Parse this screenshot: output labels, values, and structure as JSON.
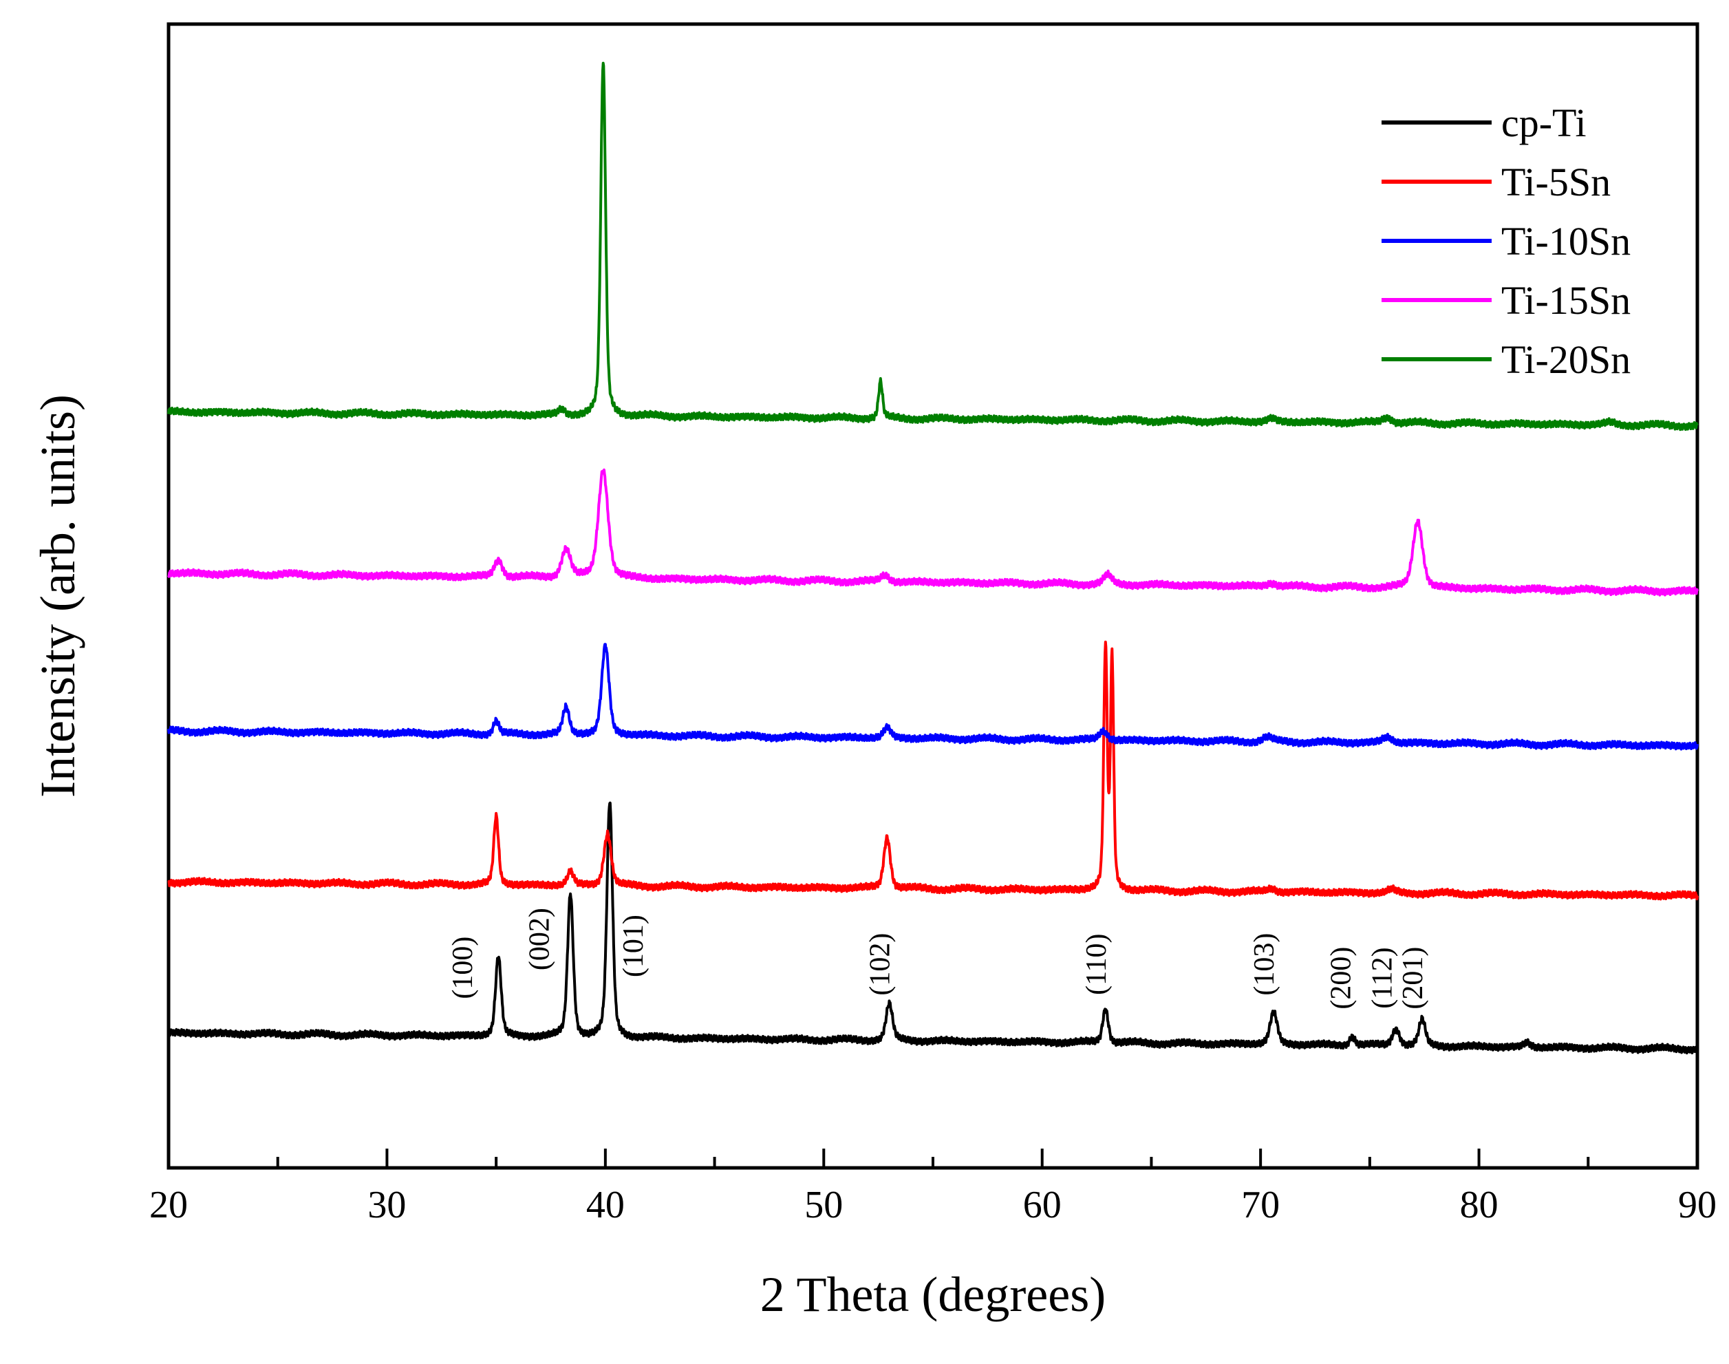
{
  "chart_data": {
    "type": "line",
    "title": "",
    "xlabel": "2 Theta (degrees)",
    "ylabel": "Intensity (arb. units)",
    "xlim": [
      20,
      90
    ],
    "ylim": [
      0,
      100
    ],
    "xticks": [
      20,
      30,
      40,
      50,
      60,
      70,
      80,
      90
    ],
    "xtick_labels": [
      "20",
      "30",
      "40",
      "50",
      "60",
      "70",
      "80",
      "90"
    ],
    "grid": false,
    "legend_position": "top-right",
    "series": [
      {
        "name": "cp-Ti",
        "color": "#000000",
        "baseline_start": 11.8,
        "baseline_end": 10.4,
        "peaks": [
          {
            "x": 35.1,
            "height": 7.0,
            "width": 0.35
          },
          {
            "x": 38.4,
            "height": 12.5,
            "width": 0.35
          },
          {
            "x": 40.2,
            "height": 20.5,
            "width": 0.35
          },
          {
            "x": 53.0,
            "height": 3.2,
            "width": 0.4
          },
          {
            "x": 62.9,
            "height": 3.0,
            "width": 0.35
          },
          {
            "x": 70.6,
            "height": 2.8,
            "width": 0.45
          },
          {
            "x": 74.2,
            "height": 0.8,
            "width": 0.35
          },
          {
            "x": 76.2,
            "height": 1.5,
            "width": 0.45
          },
          {
            "x": 77.4,
            "height": 2.3,
            "width": 0.4
          },
          {
            "x": 82.2,
            "height": 0.4,
            "width": 0.4
          }
        ]
      },
      {
        "name": "Ti-5Sn",
        "color": "#ff0000",
        "baseline_start": 25.0,
        "baseline_end": 23.8,
        "peaks": [
          {
            "x": 35.0,
            "height": 6.0,
            "width": 0.3
          },
          {
            "x": 38.4,
            "height": 1.2,
            "width": 0.4
          },
          {
            "x": 40.1,
            "height": 4.6,
            "width": 0.45
          },
          {
            "x": 52.9,
            "height": 4.5,
            "width": 0.4
          },
          {
            "x": 62.9,
            "height": 21.0,
            "width": 0.22
          },
          {
            "x": 63.2,
            "height": 20.0,
            "width": 0.2
          },
          {
            "x": 70.5,
            "height": 0.3,
            "width": 0.5
          },
          {
            "x": 76.0,
            "height": 0.3,
            "width": 0.5
          }
        ]
      },
      {
        "name": "Ti-10Sn",
        "color": "#0000ff",
        "baseline_start": 38.2,
        "baseline_end": 36.9,
        "peaks": [
          {
            "x": 35.0,
            "height": 1.2,
            "width": 0.35
          },
          {
            "x": 38.2,
            "height": 2.4,
            "width": 0.4
          },
          {
            "x": 40.0,
            "height": 7.8,
            "width": 0.45
          },
          {
            "x": 52.9,
            "height": 0.9,
            "width": 0.45
          },
          {
            "x": 62.8,
            "height": 0.8,
            "width": 0.5
          },
          {
            "x": 70.3,
            "height": 0.4,
            "width": 0.6
          },
          {
            "x": 75.8,
            "height": 0.5,
            "width": 0.6
          }
        ]
      },
      {
        "name": "Ti-15Sn",
        "color": "#ff00ff",
        "baseline_start": 52.0,
        "baseline_end": 50.4,
        "peaks": [
          {
            "x": 35.1,
            "height": 1.5,
            "width": 0.5
          },
          {
            "x": 38.2,
            "height": 2.5,
            "width": 0.55
          },
          {
            "x": 39.9,
            "height": 9.5,
            "width": 0.6
          },
          {
            "x": 52.8,
            "height": 0.6,
            "width": 0.5
          },
          {
            "x": 63.0,
            "height": 0.8,
            "width": 0.5
          },
          {
            "x": 70.5,
            "height": 0.3,
            "width": 0.6
          },
          {
            "x": 77.2,
            "height": 5.9,
            "width": 0.6
          }
        ]
      },
      {
        "name": "Ti-20Sn",
        "color": "#007f00",
        "baseline_start": 66.1,
        "baseline_end": 64.9,
        "peaks": [
          {
            "x": 38.0,
            "height": 0.5,
            "width": 0.4
          },
          {
            "x": 39.9,
            "height": 30.8,
            "width": 0.3
          },
          {
            "x": 52.6,
            "height": 3.2,
            "width": 0.25
          },
          {
            "x": 70.5,
            "height": 0.3,
            "width": 0.5
          },
          {
            "x": 75.8,
            "height": 0.5,
            "width": 0.6
          },
          {
            "x": 86.0,
            "height": 0.2,
            "width": 0.6
          }
        ]
      }
    ],
    "annotations": [
      {
        "text": "(100)",
        "x": 33.9,
        "y": 17.5
      },
      {
        "text": "(002)",
        "x": 37.4,
        "y": 20.0
      },
      {
        "text": "(101)",
        "x": 41.7,
        "y": 19.4
      },
      {
        "text": "(102)",
        "x": 53.0,
        "y": 17.8
      },
      {
        "text": "(110)",
        "x": 62.9,
        "y": 17.8
      },
      {
        "text": "(103)",
        "x": 70.6,
        "y": 17.8
      },
      {
        "text": "(200)",
        "x": 74.1,
        "y": 16.6
      },
      {
        "text": "(112)",
        "x": 76.0,
        "y": 16.6
      },
      {
        "text": "(201)",
        "x": 77.4,
        "y": 16.6
      }
    ]
  }
}
